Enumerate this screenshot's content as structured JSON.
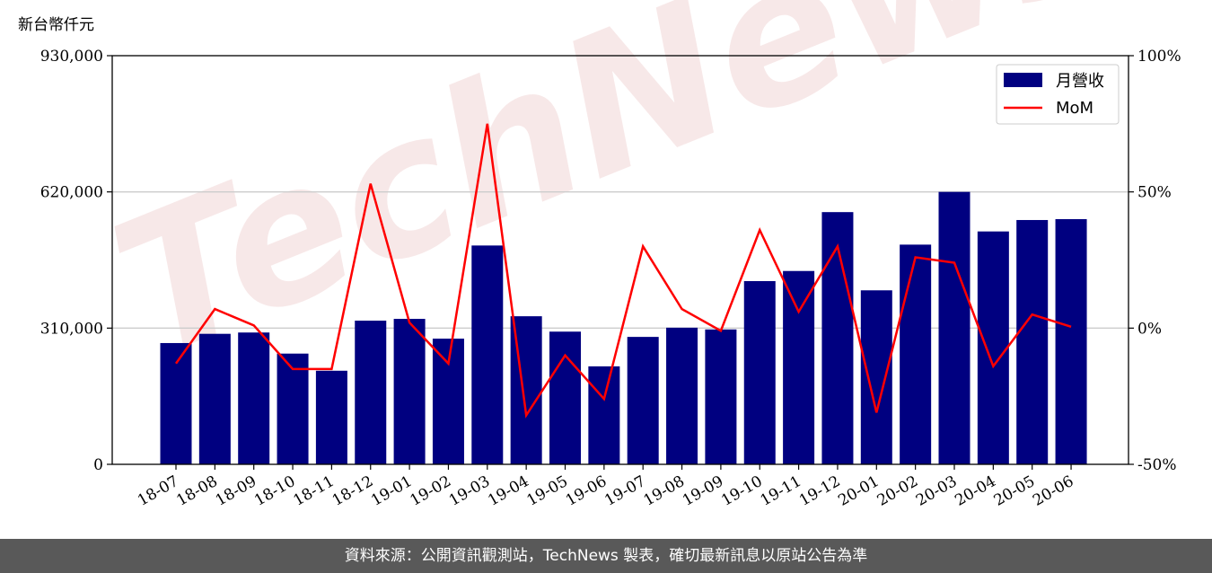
{
  "unit_label": "新台幣仟元",
  "watermark": "TechNews",
  "footer": "資料來源：公開資訊觀測站，TechNews 製表，確切最新訊息以原站公告為準",
  "colors": {
    "bar": "#000080",
    "line": "#ff0000",
    "grid": "#cccccc",
    "footer_bg": "#595959"
  },
  "chart_data": {
    "type": "bar",
    "categories": [
      "18-07",
      "18-08",
      "18-09",
      "18-10",
      "18-11",
      "18-12",
      "19-01",
      "19-02",
      "19-03",
      "19-04",
      "19-05",
      "19-06",
      "19-07",
      "19-08",
      "19-09",
      "19-10",
      "19-11",
      "19-12",
      "20-01",
      "20-02",
      "20-03",
      "20-04",
      "20-05",
      "20-06"
    ],
    "series": [
      {
        "name": "月營收",
        "type": "bar",
        "axis": "left",
        "values": [
          276000,
          297000,
          300000,
          252000,
          213000,
          327000,
          331000,
          286000,
          498000,
          337000,
          302000,
          223000,
          290000,
          311000,
          307000,
          417000,
          440000,
          574000,
          396000,
          500000,
          620000,
          530000,
          556000,
          558000
        ]
      },
      {
        "name": "MoM",
        "type": "line",
        "axis": "right",
        "values": [
          -13,
          7,
          1,
          -15,
          -15,
          53,
          2,
          -13,
          75,
          -32,
          -10,
          -26,
          30,
          7,
          -1,
          36,
          6,
          30,
          -31,
          26,
          24,
          -14,
          5,
          0.5
        ]
      }
    ],
    "left_axis": {
      "ylim": [
        0,
        930000
      ],
      "ticks": [
        "0",
        "310,000",
        "620,000",
        "930,000"
      ],
      "tick_values": [
        0,
        310000,
        620000,
        930000
      ]
    },
    "right_axis": {
      "ylim": [
        -50,
        100
      ],
      "ticks": [
        "-50%",
        "0%",
        "50%",
        "100%"
      ],
      "tick_values": [
        -50,
        0,
        50,
        100
      ]
    },
    "grid": true,
    "legend": {
      "placement": "top-right",
      "entries": [
        "月營收",
        "MoM"
      ]
    }
  }
}
